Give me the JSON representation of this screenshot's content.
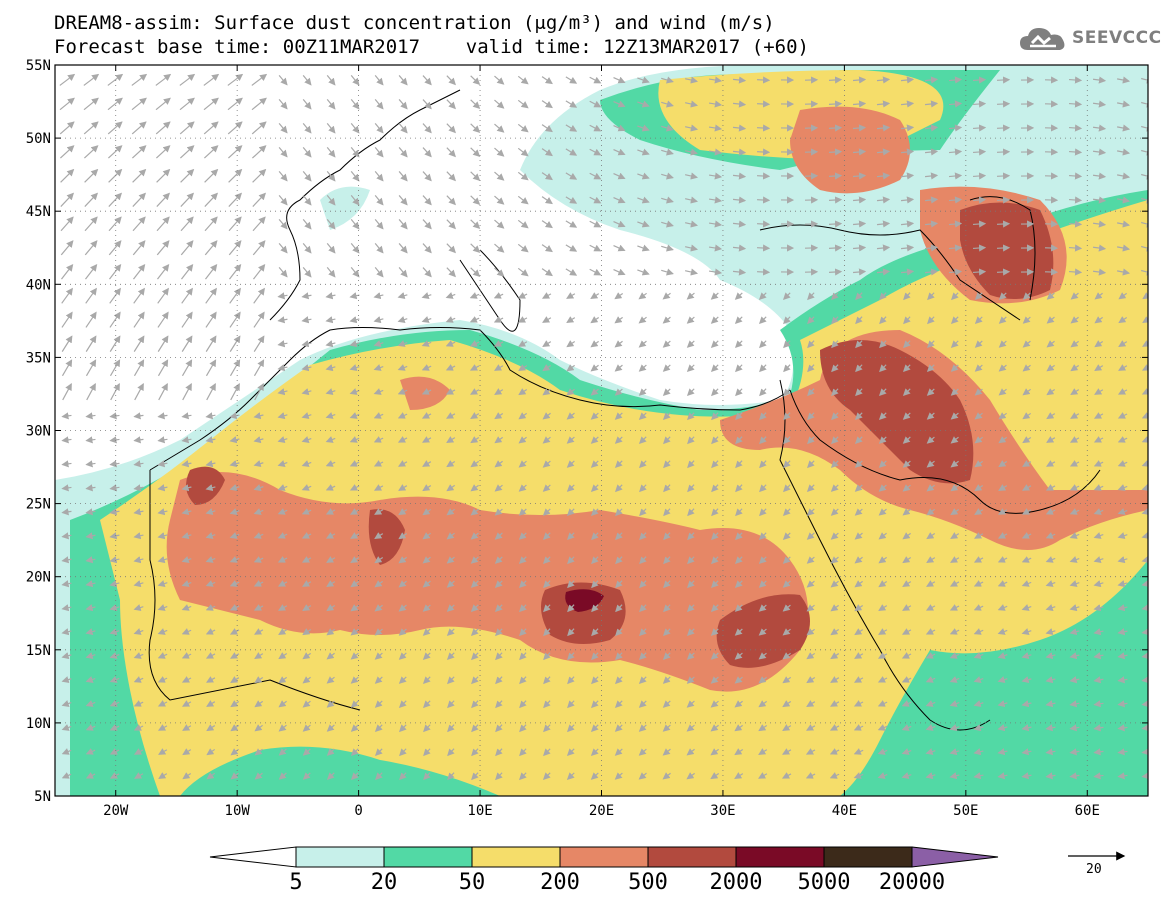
{
  "header": {
    "title_line1": "DREAM8-assim: Surface dust concentration (μg/m³) and wind (m/s)",
    "title_line2": "Forecast base time: 00Z11MAR2017    valid time: 12Z13MAR2017 (+60)"
  },
  "logo": {
    "text": "SEEVCCC",
    "icon": "cloud-icon",
    "color": "#7f7f7f"
  },
  "map": {
    "lat_labels": [
      "55N",
      "50N",
      "45N",
      "40N",
      "35N",
      "30N",
      "25N",
      "20N",
      "15N",
      "10N",
      "5N"
    ],
    "lat_values": [
      55,
      50,
      45,
      40,
      35,
      30,
      25,
      20,
      15,
      10,
      5
    ],
    "lon_labels": [
      "20W",
      "10W",
      "0",
      "10E",
      "20E",
      "30E",
      "40E",
      "50E",
      "60E"
    ],
    "lon_values": [
      -20,
      -10,
      0,
      10,
      20,
      30,
      40,
      50,
      60
    ],
    "lon_range": [
      -25,
      65
    ],
    "lat_range": [
      5,
      55
    ],
    "wind_arrow_color": "#a9a9a9",
    "coast_color": "#000000"
  },
  "colorbar": {
    "labels": [
      "5",
      "20",
      "50",
      "200",
      "500",
      "2000",
      "5000",
      "20000"
    ],
    "colors": [
      "#c7f0ea",
      "#52d9a5",
      "#f5dd6a",
      "#e68766",
      "#b24a3e",
      "#7a0a26",
      "#3c2a1a"
    ],
    "under_color": "#ffffff",
    "over_color": "#8b5fa6"
  },
  "reference_vector": {
    "label": "20"
  }
}
